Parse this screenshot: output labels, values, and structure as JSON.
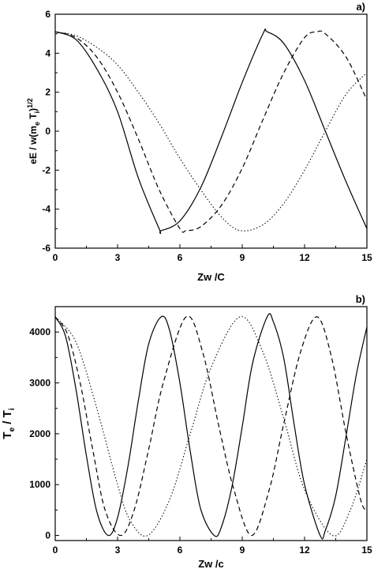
{
  "chart_data": [
    {
      "type": "line",
      "panel_label": "a)",
      "xlabel": "Zw /C",
      "ylabel": "eE / w(m_e T_i)^1/2",
      "ylabel_parts": {
        "main": "eE / w(m",
        "sub1": "e",
        "mid": " T",
        "sub2": "i",
        "close": ")",
        "sup": "1/2"
      },
      "xlim": [
        0,
        15
      ],
      "ylim": [
        -6,
        6
      ],
      "xticks": [
        "0",
        "3",
        "6",
        "9",
        "12",
        "15"
      ],
      "yticks": [
        "-6",
        "-4",
        "-2",
        "0",
        "2",
        "4",
        "6"
      ],
      "grid": false,
      "legend": "none",
      "series": [
        {
          "style": "solid",
          "x": [
            0,
            1,
            2,
            3,
            4,
            5,
            5.1,
            6,
            7,
            8,
            9,
            10,
            10.2,
            11,
            12,
            13,
            14,
            15
          ],
          "y": [
            5.1,
            4.7,
            3.2,
            1.0,
            -2.4,
            -5.0,
            -5.1,
            -4.6,
            -2.9,
            -0.3,
            2.5,
            5.0,
            5.1,
            4.5,
            2.6,
            0.0,
            -2.6,
            -5.0
          ]
        },
        {
          "style": "dashed",
          "x": [
            0,
            1,
            2,
            3,
            4,
            5,
            6,
            6.3,
            7,
            8,
            9,
            10,
            11,
            12,
            12.6,
            13,
            14,
            15
          ],
          "y": [
            5.1,
            4.8,
            3.8,
            2.0,
            -0.4,
            -3.0,
            -5.0,
            -5.1,
            -4.9,
            -3.8,
            -1.9,
            0.6,
            3.0,
            4.8,
            5.1,
            5.0,
            3.8,
            1.6
          ]
        },
        {
          "style": "dotted",
          "x": [
            0,
            1,
            2,
            3,
            4,
            5,
            6,
            7,
            8,
            8.9,
            10,
            11,
            12,
            13,
            14,
            15
          ],
          "y": [
            5.1,
            4.9,
            4.3,
            3.4,
            2.0,
            0.4,
            -1.4,
            -3.0,
            -4.4,
            -5.1,
            -4.8,
            -3.7,
            -2.0,
            0.0,
            1.9,
            3.0
          ]
        }
      ]
    },
    {
      "type": "line",
      "panel_label": "b)",
      "xlabel": "Zw /c",
      "ylabel": "T_e / T_i",
      "ylabel_parts": {
        "main": "T",
        "sub1": "e",
        "mid": " / T",
        "sub2": "i"
      },
      "xlim": [
        0,
        15
      ],
      "ylim": [
        -100,
        4500
      ],
      "xticks": [
        "0",
        "3",
        "6",
        "9",
        "12",
        "15"
      ],
      "yticks": [
        "0",
        "1000",
        "2000",
        "3000",
        "4000"
      ],
      "grid": false,
      "legend": "none",
      "series": [
        {
          "style": "solid",
          "x": [
            0,
            0.5,
            1,
            1.5,
            2,
            2.55,
            3,
            3.5,
            4,
            4.5,
            5.1,
            5.5,
            6,
            6.5,
            7,
            7.65,
            8,
            8.5,
            9,
            9.5,
            10.2,
            10.5,
            11,
            11.5,
            12,
            12.75,
            13,
            13.5,
            14,
            14.5,
            15
          ],
          "y": [
            4300,
            3910,
            2870,
            1570,
            470,
            0,
            350,
            1360,
            2650,
            3770,
            4300,
            4040,
            3000,
            1650,
            520,
            0,
            170,
            950,
            2140,
            3390,
            4300,
            4200,
            3480,
            2180,
            1000,
            0,
            100,
            780,
            1960,
            3180,
            4100
          ]
        },
        {
          "style": "dashed",
          "x": [
            0,
            0.6,
            1.2,
            1.8,
            2.4,
            3.15,
            3.8,
            4.5,
            5.2,
            6.3,
            7.1,
            7.9,
            8.6,
            9.45,
            10.3,
            11.0,
            11.8,
            12.6,
            13.3,
            14.0,
            14.7,
            15
          ],
          "y": [
            4300,
            3950,
            3000,
            1700,
            500,
            0,
            500,
            1700,
            3000,
            4300,
            3600,
            2100,
            900,
            0,
            900,
            2200,
            3600,
            4300,
            3500,
            2000,
            700,
            500
          ]
        },
        {
          "style": "dotted",
          "x": [
            0,
            1,
            2,
            3,
            3.6,
            4.45,
            5.5,
            6.5,
            7.5,
            8.9,
            10,
            11,
            12,
            13.35,
            14.2,
            15
          ],
          "y": [
            4300,
            3800,
            2500,
            1000,
            300,
            0,
            700,
            2000,
            3300,
            4300,
            3600,
            2300,
            900,
            0,
            500,
            1500
          ]
        }
      ]
    }
  ]
}
